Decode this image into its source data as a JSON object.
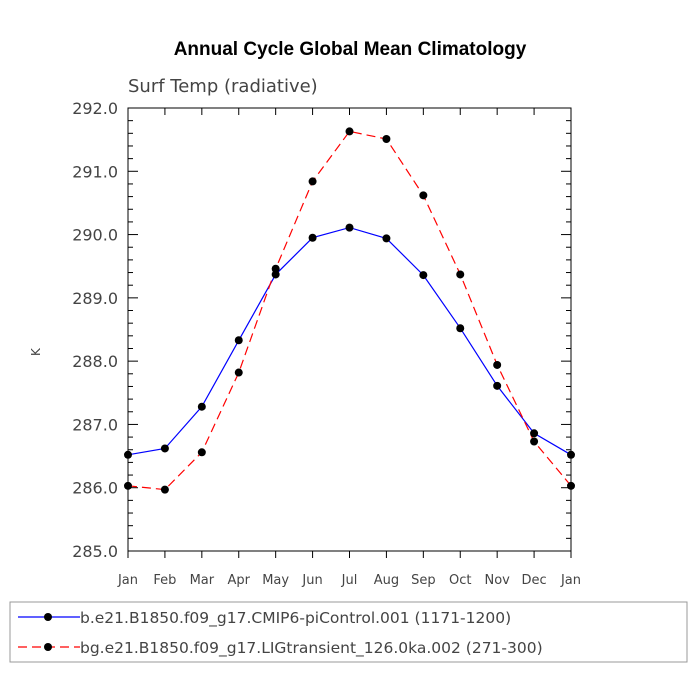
{
  "chart_data": {
    "type": "line",
    "title": "Annual Cycle Global Mean Climatology",
    "subtitle": "Surf Temp (radiative)",
    "xlabel": "",
    "ylabel": "K",
    "categories": [
      "Jan",
      "Feb",
      "Mar",
      "Apr",
      "May",
      "Jun",
      "Jul",
      "Aug",
      "Sep",
      "Oct",
      "Nov",
      "Dec",
      "Jan"
    ],
    "ylim": [
      285.0,
      292.0
    ],
    "yticks": [
      "285.0",
      "286.0",
      "287.0",
      "288.0",
      "289.0",
      "290.0",
      "291.0",
      "292.0"
    ],
    "grid": false,
    "legend_position": "bottom",
    "series": [
      {
        "name": "b.e21.B1850.f09_g17.CMIP6-piControl.001 (1171-1200)",
        "color": "#0000ff",
        "line_style": "solid",
        "marker": "filled-circle",
        "values": [
          286.52,
          286.62,
          287.28,
          288.33,
          289.37,
          289.95,
          290.11,
          289.94,
          289.36,
          288.52,
          287.61,
          286.86,
          286.52
        ]
      },
      {
        "name": "bg.e21.B1850.f09_g17.LIGtransient_126.0ka.002 (271-300)",
        "color": "#ff0000",
        "line_style": "dashed",
        "marker": "filled-circle",
        "values": [
          286.03,
          285.97,
          286.56,
          287.82,
          289.46,
          290.84,
          291.63,
          291.51,
          290.62,
          289.37,
          287.94,
          286.73,
          286.03
        ]
      }
    ]
  }
}
